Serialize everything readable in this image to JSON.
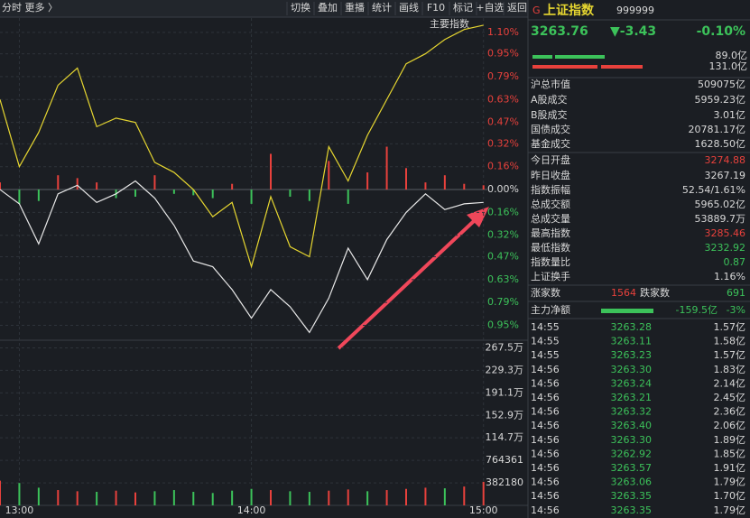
{
  "toolbar": {
    "left": "分时  更多 〉",
    "buttons": [
      "切换",
      "叠加",
      "重播",
      "统计",
      "画线",
      "F10",
      "标记",
      "+自选",
      "返回"
    ]
  },
  "chart_data": {
    "type": "line",
    "label": "主要指数",
    "xlim": [
      -5,
      121
    ],
    "xticks": [
      {
        "value": 0,
        "label": "13:00"
      },
      {
        "value": 60,
        "label": "14:00"
      },
      {
        "value": 120,
        "label": "15:00"
      }
    ],
    "ylim": [
      -1.01,
      1.2
    ],
    "yticks": [
      {
        "value": 1.1,
        "label": "1.10%"
      },
      {
        "value": 0.95,
        "label": "0.95%"
      },
      {
        "value": 0.79,
        "label": "0.79%"
      },
      {
        "value": 0.63,
        "label": "0.63%"
      },
      {
        "value": 0.47,
        "label": "0.47%"
      },
      {
        "value": 0.32,
        "label": "0.32%"
      },
      {
        "value": 0.16,
        "label": "0.16%"
      },
      {
        "value": 0,
        "label": "0.00%"
      },
      {
        "value": -0.16,
        "label": "0.16%"
      },
      {
        "value": -0.32,
        "label": "0.32%"
      },
      {
        "value": -0.47,
        "label": "0.47%"
      },
      {
        "value": -0.63,
        "label": "0.63%"
      },
      {
        "value": -0.79,
        "label": "0.79%"
      },
      {
        "value": -0.95,
        "label": "0.95%"
      }
    ],
    "grid": true,
    "x": [
      -5,
      0,
      5,
      10,
      15,
      20,
      25,
      30,
      35,
      40,
      45,
      50,
      55,
      60,
      65,
      70,
      75,
      80,
      85,
      90,
      95,
      100,
      105,
      110,
      115,
      120
    ],
    "series": [
      {
        "color": "#e8e8e8",
        "values": [
          0,
          -0.1,
          -0.38,
          -0.03,
          0.03,
          -0.09,
          -0.03,
          0.06,
          -0.06,
          -0.25,
          -0.5,
          -0.54,
          -0.7,
          -0.9,
          -0.7,
          -0.82,
          -1.0,
          -0.76,
          -0.41,
          -0.63,
          -0.35,
          -0.16,
          -0.03,
          -0.14,
          -0.1,
          -0.09
        ]
      },
      {
        "color": "#e6d630",
        "values": [
          0.63,
          0.16,
          0.4,
          0.73,
          0.85,
          0.44,
          0.5,
          0.47,
          0.19,
          0.12,
          0.0,
          -0.19,
          -0.09,
          -0.54,
          -0.05,
          -0.4,
          -0.47,
          0.3,
          0.06,
          0.38,
          0.63,
          0.88,
          0.95,
          1.05,
          1.12,
          1.15
        ]
      }
    ],
    "flow_bars": [
      0.05,
      -0.1,
      -0.08,
      0.1,
      0.08,
      0.05,
      -0.06,
      -0.05,
      0.1,
      -0.03,
      -0.04,
      -0.06,
      0.04,
      -0.1,
      0.25,
      -0.05,
      -0.08,
      0.2,
      -0.1,
      0.12,
      0.3,
      0.15,
      0.05,
      0.1,
      0.04,
      0.03
    ],
    "volume": {
      "ylim": [
        0,
        2790000
      ],
      "yticks": [
        {
          "value": 2675000,
          "label": "267.5万"
        },
        {
          "value": 2293000,
          "label": "229.3万"
        },
        {
          "value": 1911000,
          "label": "191.1万"
        },
        {
          "value": 1529000,
          "label": "152.9万"
        },
        {
          "value": 1147000,
          "label": "114.7万"
        },
        764361,
        382180
      ],
      "values": [
        420000,
        380000,
        300000,
        260000,
        240000,
        230000,
        250000,
        220000,
        240000,
        260000,
        230000,
        210000,
        250000,
        280000,
        260000,
        240000,
        230000,
        250000,
        270000,
        240000,
        260000,
        280000,
        300000,
        290000,
        320000,
        400000
      ]
    }
  },
  "panel": {
    "marker": "G",
    "name": "上证指数",
    "code": "999999",
    "price": "3263.76",
    "change": "▼-3.43",
    "change_pct": "-0.10%",
    "buy_amount": "89.0亿",
    "sell_amount": "131.0亿",
    "stats": [
      [
        "沪总市值",
        "509075亿"
      ],
      [
        "A股成交",
        "5959.23亿"
      ],
      [
        "B股成交",
        "3.01亿"
      ],
      [
        "国债成交",
        "20781.17亿"
      ],
      [
        "基金成交",
        "1628.50亿"
      ],
      [
        "今日开盘",
        "3274.88"
      ],
      [
        "昨日收盘",
        "3267.19"
      ],
      [
        "指数振幅",
        "52.54/1.61%"
      ],
      [
        "总成交额",
        "5965.02亿"
      ],
      [
        "总成交量",
        "53889.7万"
      ],
      [
        "最高指数",
        "3285.46"
      ],
      [
        "最低指数",
        "3232.92"
      ],
      [
        "指数量比",
        "0.87"
      ],
      [
        "上证换手",
        "1.16%"
      ]
    ],
    "up_label": "涨家数",
    "up": "1564",
    "down_label": "跌家数",
    "down": "691",
    "flow_label": "主力净额",
    "flow": "-159.5亿",
    "flow_pct": "-3%",
    "trades": [
      [
        "14:55",
        "3263.28",
        "1.57亿"
      ],
      [
        "14:55",
        "3263.11",
        "1.58亿"
      ],
      [
        "14:55",
        "3263.23",
        "1.57亿"
      ],
      [
        "14:56",
        "3263.30",
        "1.83亿"
      ],
      [
        "14:56",
        "3263.24",
        "2.14亿"
      ],
      [
        "14:56",
        "3263.21",
        "2.45亿"
      ],
      [
        "14:56",
        "3263.32",
        "2.36亿"
      ],
      [
        "14:56",
        "3263.40",
        "2.06亿"
      ],
      [
        "14:56",
        "3263.30",
        "1.89亿"
      ],
      [
        "14:56",
        "3262.92",
        "1.85亿"
      ],
      [
        "14:56",
        "3263.57",
        "1.91亿"
      ],
      [
        "14:56",
        "3263.06",
        "1.79亿"
      ],
      [
        "14:56",
        "3263.35",
        "1.70亿"
      ],
      [
        "14:56",
        "3263.35",
        "1.79亿"
      ]
    ]
  }
}
